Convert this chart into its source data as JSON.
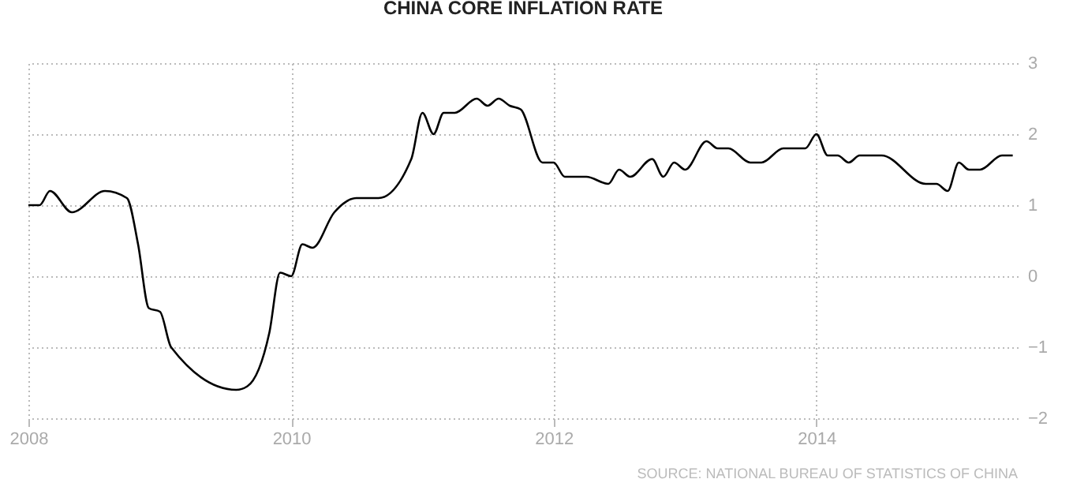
{
  "chart_data": {
    "type": "line",
    "title": "CHINA CORE INFLATION RATE",
    "x": [
      "2008-01",
      "2008-02",
      "2008-03",
      "2008-05",
      "2008-08",
      "2008-10",
      "2008-11",
      "2008-12",
      "2009-01",
      "2009-02",
      "2009-08",
      "2009-09",
      "2009-11",
      "2009-12",
      "2010-01",
      "2010-02",
      "2010-03",
      "2010-05",
      "2010-07",
      "2010-09",
      "2010-12",
      "2011-01",
      "2011-02",
      "2011-03",
      "2011-04",
      "2011-06",
      "2011-07",
      "2011-08",
      "2011-09",
      "2011-10",
      "2011-12",
      "2012-01",
      "2012-02",
      "2012-04",
      "2012-06",
      "2012-07",
      "2012-08",
      "2012-10",
      "2012-11",
      "2012-12",
      "2013-01",
      "2013-03",
      "2013-04",
      "2013-05",
      "2013-07",
      "2013-08",
      "2013-10",
      "2013-12",
      "2014-01",
      "2014-02",
      "2014-03",
      "2014-04",
      "2014-05",
      "2014-07",
      "2014-11",
      "2014-12",
      "2015-01",
      "2015-02",
      "2015-03",
      "2015-04",
      "2015-06",
      "2015-07"
    ],
    "series": [
      {
        "color": "#000000",
        "values": [
          1.0,
          1.0,
          1.2,
          0.9,
          1.2,
          1.1,
          0.45,
          -0.45,
          -0.5,
          -1.0,
          -1.6,
          -1.55,
          -0.8,
          0.05,
          0.0,
          0.45,
          0.4,
          0.9,
          1.1,
          1.1,
          1.65,
          2.3,
          2.0,
          2.3,
          2.3,
          2.5,
          2.4,
          2.5,
          2.4,
          2.35,
          1.6,
          1.6,
          1.4,
          1.4,
          1.3,
          1.5,
          1.4,
          1.65,
          1.4,
          1.6,
          1.5,
          1.9,
          1.8,
          1.8,
          1.6,
          1.6,
          1.8,
          1.8,
          2.0,
          1.7,
          1.7,
          1.6,
          1.7,
          1.7,
          1.3,
          1.3,
          1.2,
          1.6,
          1.5,
          1.5,
          1.7,
          1.7
        ]
      }
    ],
    "xlim": [
      "2008-01",
      "2015-07-15"
    ],
    "xticks": [
      "2008",
      "2010",
      "2012",
      "2014"
    ],
    "ylim": [
      -2,
      3
    ],
    "yticks": [
      -2,
      -1,
      0,
      1,
      2,
      3
    ],
    "grid": true,
    "marker": "none",
    "line_style": "solid",
    "annotations": [
      "SOURCE: NATIONAL BUREAU OF STATISTICS OF CHINA"
    ]
  }
}
